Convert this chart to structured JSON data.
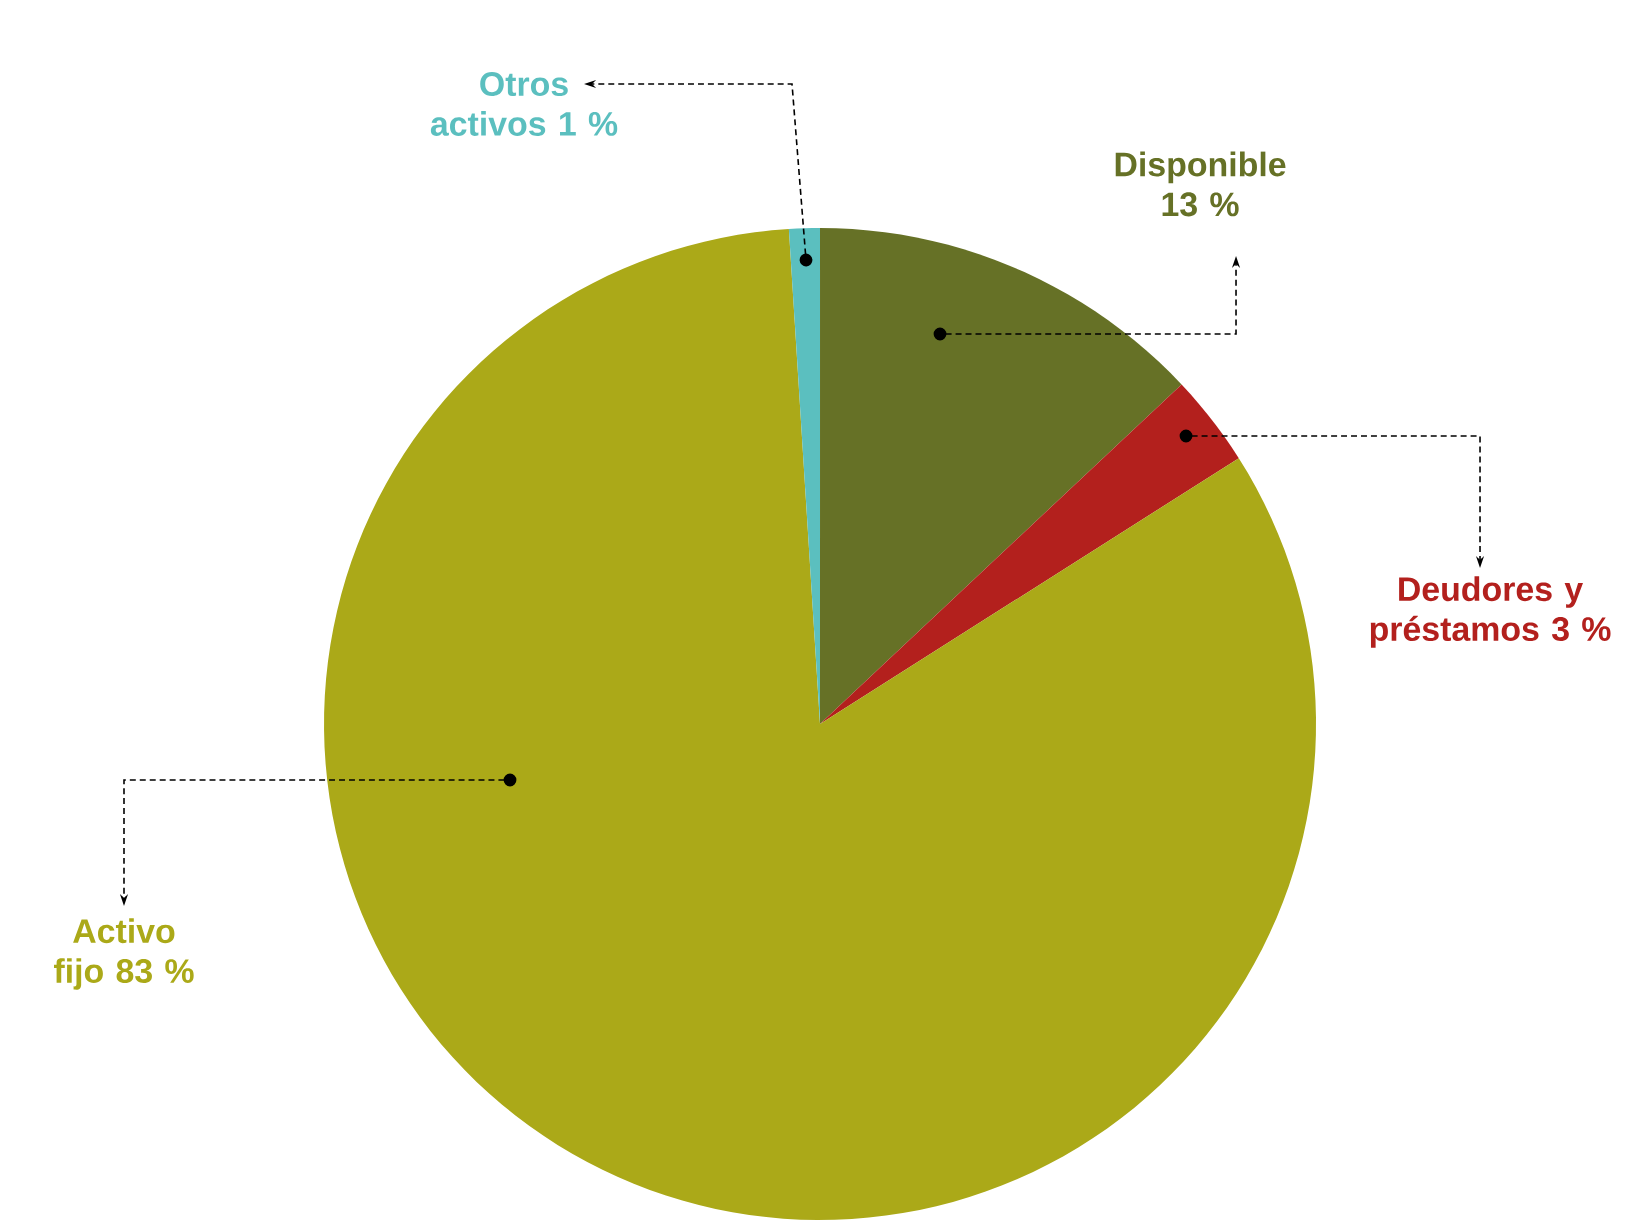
{
  "chart_data": {
    "type": "pie",
    "categories": [
      "Disponible",
      "Deudores y préstamos",
      "Activo fijo",
      "Otros activos"
    ],
    "values": [
      13,
      3,
      83,
      1
    ],
    "value_labels": [
      "13 %",
      "3 %",
      "83 %",
      "1 %"
    ],
    "colors": [
      "#667126",
      "#b3201d",
      "#aba918",
      "#5bbfbf"
    ]
  }
}
